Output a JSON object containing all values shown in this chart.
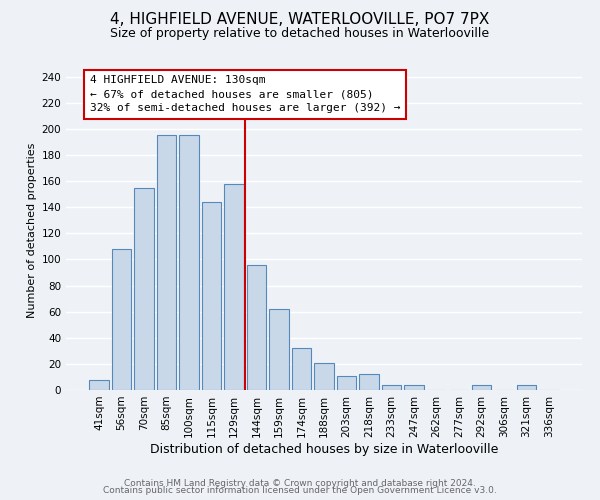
{
  "title": "4, HIGHFIELD AVENUE, WATERLOOVILLE, PO7 7PX",
  "subtitle": "Size of property relative to detached houses in Waterlooville",
  "xlabel": "Distribution of detached houses by size in Waterlooville",
  "ylabel": "Number of detached properties",
  "bar_color": "#c8d8e8",
  "bar_edge_color": "#5588bb",
  "categories": [
    "41sqm",
    "56sqm",
    "70sqm",
    "85sqm",
    "100sqm",
    "115sqm",
    "129sqm",
    "144sqm",
    "159sqm",
    "174sqm",
    "188sqm",
    "203sqm",
    "218sqm",
    "233sqm",
    "247sqm",
    "262sqm",
    "277sqm",
    "292sqm",
    "306sqm",
    "321sqm",
    "336sqm"
  ],
  "values": [
    8,
    108,
    155,
    195,
    195,
    144,
    158,
    96,
    62,
    32,
    21,
    11,
    12,
    4,
    4,
    0,
    0,
    4,
    0,
    4,
    0
  ],
  "vline_index": 6,
  "vline_color": "#cc0000",
  "annotation_title": "4 HIGHFIELD AVENUE: 130sqm",
  "annotation_line1": "← 67% of detached houses are smaller (805)",
  "annotation_line2": "32% of semi-detached houses are larger (392) →",
  "annotation_box_color": "#ffffff",
  "annotation_box_edge_color": "#cc0000",
  "ylim": [
    0,
    245
  ],
  "yticks": [
    0,
    20,
    40,
    60,
    80,
    100,
    120,
    140,
    160,
    180,
    200,
    220,
    240
  ],
  "footer1": "Contains HM Land Registry data © Crown copyright and database right 2024.",
  "footer2": "Contains public sector information licensed under the Open Government Licence v3.0.",
  "background_color": "#eef2f7",
  "grid_color": "#ffffff",
  "title_fontsize": 11,
  "subtitle_fontsize": 9,
  "xlabel_fontsize": 9,
  "ylabel_fontsize": 8,
  "tick_fontsize": 7.5,
  "annotation_fontsize": 8,
  "footer_fontsize": 6.5
}
